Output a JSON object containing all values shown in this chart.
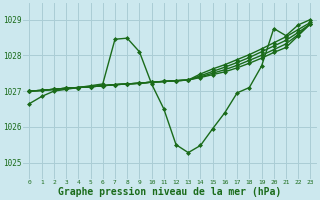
{
  "background_color": "#cce8ee",
  "grid_color": "#aacdd5",
  "line_color": "#1a6b1a",
  "marker": "D",
  "marker_size": 2.0,
  "line_width": 1.0,
  "xlabel": "Graphe pression niveau de la mer (hPa)",
  "xlabel_fontsize": 7.0,
  "xlim": [
    -0.5,
    23.5
  ],
  "ylim": [
    1024.55,
    1029.45
  ],
  "yticks": [
    1025,
    1026,
    1027,
    1028,
    1029
  ],
  "xticks": [
    0,
    1,
    2,
    3,
    4,
    5,
    6,
    7,
    8,
    9,
    10,
    11,
    12,
    13,
    14,
    15,
    16,
    17,
    18,
    19,
    20,
    21,
    22,
    23
  ],
  "series": [
    [
      1026.65,
      1026.85,
      1027.0,
      1027.05,
      1027.1,
      1027.15,
      1027.2,
      1028.45,
      1028.48,
      1028.1,
      1027.2,
      1026.5,
      1025.5,
      1025.28,
      1025.48,
      1025.95,
      1026.4,
      1026.95,
      1027.1,
      1027.7,
      1028.75,
      1028.55,
      1028.85,
      1029.0
    ],
    [
      1027.0,
      1027.02,
      1027.05,
      1027.08,
      1027.1,
      1027.12,
      1027.15,
      1027.18,
      1027.2,
      1027.22,
      1027.25,
      1027.27,
      1027.29,
      1027.31,
      1027.38,
      1027.46,
      1027.54,
      1027.65,
      1027.78,
      1027.92,
      1028.08,
      1028.22,
      1028.55,
      1028.88
    ],
    [
      1027.0,
      1027.02,
      1027.05,
      1027.08,
      1027.1,
      1027.12,
      1027.15,
      1027.18,
      1027.2,
      1027.22,
      1027.25,
      1027.27,
      1027.29,
      1027.31,
      1027.4,
      1027.5,
      1027.6,
      1027.72,
      1027.86,
      1028.0,
      1028.16,
      1028.32,
      1028.58,
      1028.88
    ],
    [
      1027.0,
      1027.02,
      1027.05,
      1027.08,
      1027.1,
      1027.12,
      1027.15,
      1027.18,
      1027.2,
      1027.22,
      1027.25,
      1027.27,
      1027.29,
      1027.31,
      1027.43,
      1027.55,
      1027.67,
      1027.8,
      1027.94,
      1028.1,
      1028.26,
      1028.42,
      1028.64,
      1028.88
    ],
    [
      1027.0,
      1027.02,
      1027.05,
      1027.08,
      1027.1,
      1027.12,
      1027.15,
      1027.18,
      1027.2,
      1027.22,
      1027.25,
      1027.27,
      1027.29,
      1027.31,
      1027.48,
      1027.62,
      1027.74,
      1027.88,
      1028.02,
      1028.18,
      1028.35,
      1028.52,
      1028.72,
      1028.92
    ]
  ]
}
